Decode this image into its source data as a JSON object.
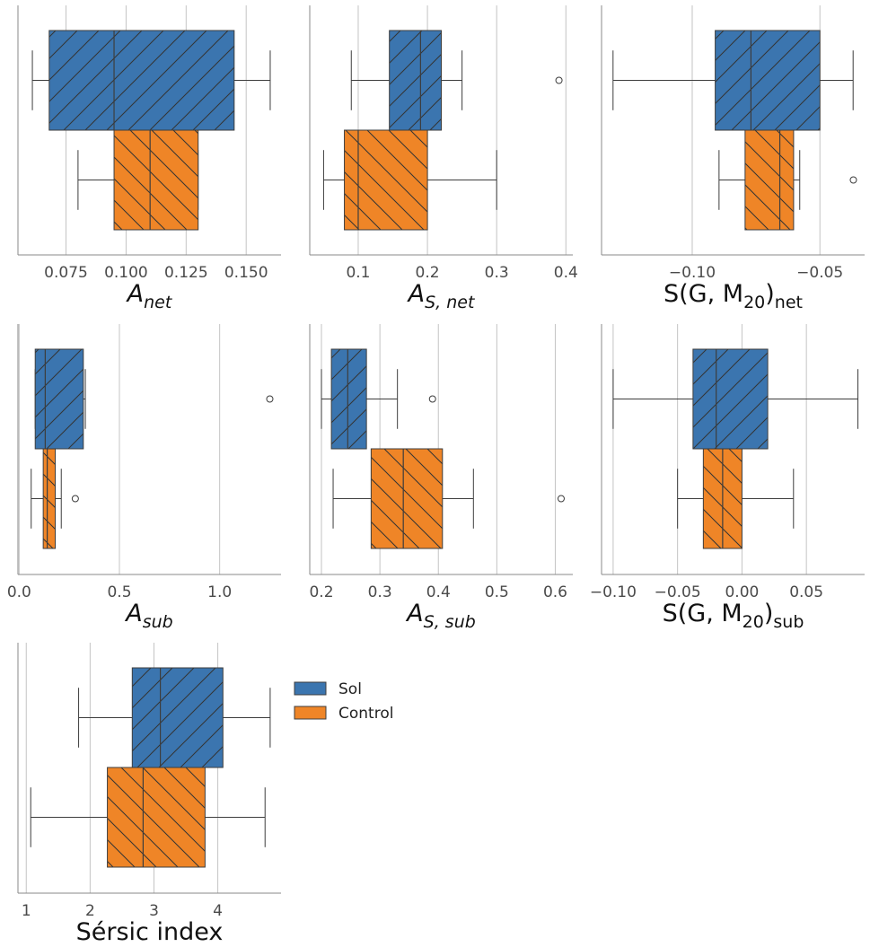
{
  "colors": {
    "sol": "#3b75af",
    "control": "#ef8527",
    "line": "#3d3d3d",
    "grid": "#c4c4c4",
    "spine": "#888888"
  },
  "legend": {
    "placement": "right of bottom-left panel",
    "entries": [
      {
        "key": "sol",
        "label": "Sol"
      },
      {
        "key": "control",
        "label": "Control"
      }
    ]
  },
  "chart_data": [
    {
      "type": "box",
      "orientation": "horizontal",
      "xlabel": {
        "main": "A",
        "sub": "net",
        "italic": true
      },
      "xlim": [
        0.055,
        0.1645
      ],
      "ticks": [
        0.075,
        0.1,
        0.125,
        0.15
      ],
      "tick_labels": [
        "0.075",
        "0.100",
        "0.125",
        "0.150"
      ],
      "grid": true,
      "series": [
        {
          "key": "sol",
          "whisker_low": 0.061,
          "q1": 0.068,
          "median": 0.095,
          "q3": 0.145,
          "whisker_high": 0.16,
          "outliers": []
        },
        {
          "key": "control",
          "whisker_low": 0.08,
          "q1": 0.095,
          "median": 0.11,
          "q3": 0.13,
          "whisker_high": 0.13,
          "outliers": []
        }
      ]
    },
    {
      "type": "box",
      "orientation": "horizontal",
      "xlabel": {
        "main": "A",
        "sub": "S, net",
        "italic": true
      },
      "xlim": [
        0.03,
        0.41
      ],
      "ticks": [
        0.1,
        0.2,
        0.3,
        0.4
      ],
      "tick_labels": [
        "0.1",
        "0.2",
        "0.3",
        "0.4"
      ],
      "grid": true,
      "series": [
        {
          "key": "sol",
          "whisker_low": 0.09,
          "q1": 0.145,
          "median": 0.19,
          "q3": 0.22,
          "whisker_high": 0.25,
          "outliers": [
            0.39
          ]
        },
        {
          "key": "control",
          "whisker_low": 0.05,
          "q1": 0.08,
          "median": 0.1,
          "q3": 0.2,
          "whisker_high": 0.3,
          "outliers": []
        }
      ]
    },
    {
      "type": "box",
      "orientation": "horizontal",
      "xlabel": {
        "main": "S(G, M",
        "sub": "20",
        "after": ")",
        "sub2": "net",
        "italic": false
      },
      "xlim": [
        -0.1355,
        -0.0325
      ],
      "ticks": [
        -0.1,
        -0.05
      ],
      "tick_labels": [
        "−0.10",
        "−0.05"
      ],
      "grid": true,
      "series": [
        {
          "key": "sol",
          "whisker_low": -0.131,
          "q1": -0.091,
          "median": -0.077,
          "q3": -0.05,
          "whisker_high": -0.037,
          "outliers": []
        },
        {
          "key": "control",
          "whisker_low": -0.0895,
          "q1": -0.0793,
          "median": -0.0657,
          "q3": -0.0603,
          "whisker_high": -0.0579,
          "outliers": [
            -0.0369
          ]
        }
      ]
    },
    {
      "type": "box",
      "orientation": "horizontal",
      "xlabel": {
        "main": "A",
        "sub": "sub",
        "italic": true
      },
      "xlim": [
        -0.006,
        1.306
      ],
      "ticks": [
        0.0,
        0.5,
        1.0
      ],
      "tick_labels": [
        "0.0",
        "0.5",
        "1.0"
      ],
      "grid": true,
      "series": [
        {
          "key": "sol",
          "whisker_low": 0.08,
          "q1": 0.08,
          "median": 0.13,
          "q3": 0.32,
          "whisker_high": 0.33,
          "outliers": [
            1.25
          ]
        },
        {
          "key": "control",
          "whisker_low": 0.06,
          "q1": 0.12,
          "median": 0.14,
          "q3": 0.18,
          "whisker_high": 0.21,
          "outliers": [
            0.28
          ]
        }
      ]
    },
    {
      "type": "box",
      "orientation": "horizontal",
      "xlabel": {
        "main": "A",
        "sub": "S, sub",
        "italic": true
      },
      "xlim": [
        0.18,
        0.63
      ],
      "ticks": [
        0.2,
        0.3,
        0.4,
        0.5,
        0.6
      ],
      "tick_labels": [
        "0.2",
        "0.3",
        "0.4",
        "0.5",
        "0.6"
      ],
      "grid": true,
      "series": [
        {
          "key": "sol",
          "whisker_low": 0.2,
          "q1": 0.217,
          "median": 0.245,
          "q3": 0.277,
          "whisker_high": 0.33,
          "outliers": [
            0.39
          ]
        },
        {
          "key": "control",
          "whisker_low": 0.22,
          "q1": 0.285,
          "median": 0.34,
          "q3": 0.407,
          "whisker_high": 0.46,
          "outliers": [
            0.61
          ]
        }
      ]
    },
    {
      "type": "box",
      "orientation": "horizontal",
      "xlabel": {
        "main": "S(G, M",
        "sub": "20",
        "after": ")",
        "sub2": "sub",
        "italic": false
      },
      "xlim": [
        -0.109,
        0.0952
      ],
      "ticks": [
        -0.1,
        -0.05,
        0.0,
        0.05
      ],
      "tick_labels": [
        "−0.10",
        "−0.05",
        "0.00",
        "0.05"
      ],
      "grid": true,
      "series": [
        {
          "key": "sol",
          "whisker_low": -0.1,
          "q1": -0.038,
          "median": -0.02,
          "q3": 0.02,
          "whisker_high": 0.09,
          "outliers": []
        },
        {
          "key": "control",
          "whisker_low": -0.05,
          "q1": -0.03,
          "median": -0.015,
          "q3": 0.0,
          "whisker_high": 0.04,
          "outliers": []
        }
      ]
    },
    {
      "type": "box",
      "orientation": "horizontal",
      "xlabel": {
        "main": "Sérsic index",
        "italic": false
      },
      "xlim": [
        0.87,
        4.99
      ],
      "ticks": [
        1,
        2,
        3,
        4
      ],
      "tick_labels": [
        "1",
        "2",
        "3",
        "4"
      ],
      "grid": true,
      "series": [
        {
          "key": "sol",
          "whisker_low": 1.82,
          "q1": 2.66,
          "median": 3.1,
          "q3": 4.08,
          "whisker_high": 4.82,
          "outliers": []
        },
        {
          "key": "control",
          "whisker_low": 1.07,
          "q1": 2.27,
          "median": 2.83,
          "q3": 3.8,
          "whisker_high": 4.74,
          "outliers": []
        }
      ]
    }
  ]
}
